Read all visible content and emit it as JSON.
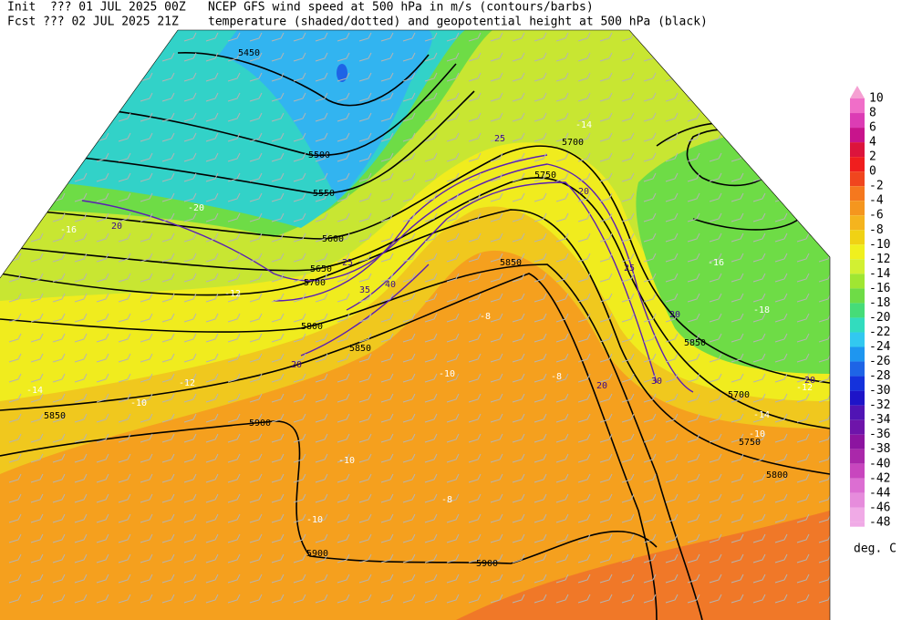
{
  "header": {
    "init": "Init  ??? 01 JUL 2025 00Z",
    "fcst": "Fcst ??? 02 JUL 2025 21Z",
    "title1": "NCEP GFS wind speed at 500 hPa in m/s (contours/barbs)",
    "title2": "temperature (shaded/dotted) and geopotential height at 500 hPa (black)"
  },
  "colorbar": {
    "labels": [
      10,
      8,
      6,
      4,
      2,
      0,
      -2,
      -4,
      -6,
      -8,
      -10,
      -12,
      -14,
      -16,
      -18,
      -20,
      -22,
      -24,
      -26,
      -28,
      -30,
      -32,
      -34,
      -36,
      -38,
      -40,
      -42,
      -44,
      -46,
      -48
    ],
    "colors": [
      "#f5a0d2",
      "#f06ec8",
      "#dc3cb4",
      "#c8148c",
      "#dc143c",
      "#f01e1e",
      "#f0461e",
      "#f5781e",
      "#f5961e",
      "#f5b41e",
      "#f0d214",
      "#f0f01e",
      "#d2f032",
      "#a0e632",
      "#6edc46",
      "#46dc78",
      "#32dcbe",
      "#32c8f0",
      "#1e96f0",
      "#1e64e6",
      "#1432dc",
      "#1e14c8",
      "#5014b4",
      "#6e14aa",
      "#8c14a0",
      "#aa28aa",
      "#c846be",
      "#dc6ed2",
      "#e68cdc",
      "#f0aae6"
    ],
    "unit": "deg. C"
  },
  "map_labels": {
    "height": [
      5450,
      5500,
      5550,
      5600,
      5650,
      5700,
      5750,
      5800,
      5850,
      5850,
      5850,
      5900,
      5900,
      5900,
      5700,
      5700,
      5750,
      5800,
      5850
    ],
    "temperature": [
      -8,
      -10,
      -12,
      -14,
      -16,
      -16,
      -18,
      -20,
      -14,
      -10,
      -8,
      -10,
      -10,
      -12,
      -8,
      -10,
      -12,
      -14
    ],
    "wind": [
      20,
      20,
      25,
      20,
      25,
      20,
      30,
      20,
      40,
      35,
      20,
      25
    ]
  }
}
